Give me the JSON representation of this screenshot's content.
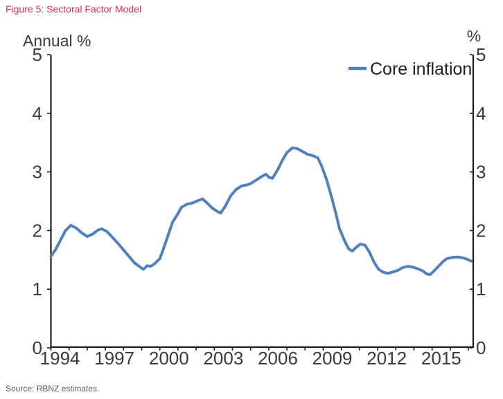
{
  "title": "Figure 5: Sectoral Factor Model",
  "source": "Source: RBNZ estimates.",
  "colors": {
    "title_text": "#e42c55",
    "line": "#4f81bd",
    "axis": "#1a1a1a",
    "tick_text": "#3a3a3a",
    "legend_text": "#1f1f1f",
    "source_text": "#595959",
    "background": "#ffffff"
  },
  "chart_data": {
    "type": "line",
    "title": "Figure 5: Sectoral Factor Model",
    "ylabel_left": "Annual %",
    "ylabel_right": "%",
    "grid": false,
    "legend_position": "top-right",
    "legend": [
      {
        "label": "Core inflation",
        "color": "#4f81bd"
      }
    ],
    "x_axis": {
      "min": 1994,
      "max": 2017.3,
      "tick_years": [
        1994,
        1995,
        1996,
        1997,
        1998,
        1999,
        2000,
        2001,
        2002,
        2003,
        2004,
        2005,
        2006,
        2007,
        2008,
        2009,
        2010,
        2011,
        2012,
        2013,
        2014,
        2015,
        2016,
        2017
      ],
      "label_years": [
        1994,
        1997,
        2000,
        2003,
        2006,
        2009,
        2012,
        2015
      ]
    },
    "y_axis": {
      "min": 0,
      "max": 5,
      "ticks": [
        0,
        1,
        2,
        3,
        4,
        5
      ]
    },
    "series": [
      {
        "name": "Core inflation",
        "color": "#4f81bd",
        "points": [
          [
            1994.0,
            1.56
          ],
          [
            1994.25,
            1.67
          ],
          [
            1994.5,
            1.82
          ],
          [
            1994.8,
            2.0
          ],
          [
            1995.1,
            2.09
          ],
          [
            1995.4,
            2.04
          ],
          [
            1995.7,
            1.96
          ],
          [
            1996.0,
            1.9
          ],
          [
            1996.3,
            1.94
          ],
          [
            1996.6,
            2.01
          ],
          [
            1996.8,
            2.03
          ],
          [
            1997.1,
            1.98
          ],
          [
            1997.4,
            1.88
          ],
          [
            1997.7,
            1.78
          ],
          [
            1998.0,
            1.67
          ],
          [
            1998.3,
            1.56
          ],
          [
            1998.6,
            1.45
          ],
          [
            1998.9,
            1.38
          ],
          [
            1999.1,
            1.34
          ],
          [
            1999.3,
            1.4
          ],
          [
            1999.5,
            1.39
          ],
          [
            1999.7,
            1.43
          ],
          [
            2000.0,
            1.52
          ],
          [
            2000.2,
            1.69
          ],
          [
            2000.5,
            1.96
          ],
          [
            2000.7,
            2.14
          ],
          [
            2001.0,
            2.29
          ],
          [
            2001.2,
            2.4
          ],
          [
            2001.5,
            2.45
          ],
          [
            2001.8,
            2.47
          ],
          [
            2002.1,
            2.51
          ],
          [
            2002.35,
            2.54
          ],
          [
            2002.6,
            2.47
          ],
          [
            2002.9,
            2.38
          ],
          [
            2003.2,
            2.32
          ],
          [
            2003.35,
            2.3
          ],
          [
            2003.6,
            2.41
          ],
          [
            2003.9,
            2.59
          ],
          [
            2004.2,
            2.7
          ],
          [
            2004.5,
            2.76
          ],
          [
            2004.8,
            2.78
          ],
          [
            2005.0,
            2.8
          ],
          [
            2005.3,
            2.86
          ],
          [
            2005.6,
            2.92
          ],
          [
            2005.85,
            2.96
          ],
          [
            2006.0,
            2.91
          ],
          [
            2006.2,
            2.89
          ],
          [
            2006.5,
            3.04
          ],
          [
            2006.75,
            3.2
          ],
          [
            2007.0,
            3.33
          ],
          [
            2007.3,
            3.41
          ],
          [
            2007.55,
            3.4
          ],
          [
            2007.85,
            3.35
          ],
          [
            2008.15,
            3.3
          ],
          [
            2008.4,
            3.28
          ],
          [
            2008.7,
            3.24
          ],
          [
            2008.9,
            3.11
          ],
          [
            2009.2,
            2.86
          ],
          [
            2009.45,
            2.58
          ],
          [
            2009.7,
            2.29
          ],
          [
            2009.9,
            2.03
          ],
          [
            2010.2,
            1.81
          ],
          [
            2010.4,
            1.69
          ],
          [
            2010.6,
            1.65
          ],
          [
            2010.8,
            1.71
          ],
          [
            2011.05,
            1.77
          ],
          [
            2011.3,
            1.75
          ],
          [
            2011.55,
            1.63
          ],
          [
            2011.8,
            1.46
          ],
          [
            2012.05,
            1.34
          ],
          [
            2012.3,
            1.29
          ],
          [
            2012.55,
            1.27
          ],
          [
            2012.8,
            1.29
          ],
          [
            2013.1,
            1.32
          ],
          [
            2013.4,
            1.37
          ],
          [
            2013.65,
            1.39
          ],
          [
            2013.9,
            1.38
          ],
          [
            2014.2,
            1.35
          ],
          [
            2014.5,
            1.31
          ],
          [
            2014.7,
            1.26
          ],
          [
            2014.9,
            1.25
          ],
          [
            2015.1,
            1.31
          ],
          [
            2015.35,
            1.39
          ],
          [
            2015.6,
            1.47
          ],
          [
            2015.8,
            1.52
          ],
          [
            2016.1,
            1.54
          ],
          [
            2016.35,
            1.55
          ],
          [
            2016.6,
            1.54
          ],
          [
            2016.85,
            1.52
          ],
          [
            2017.0,
            1.5
          ],
          [
            2017.15,
            1.48
          ]
        ]
      }
    ]
  }
}
